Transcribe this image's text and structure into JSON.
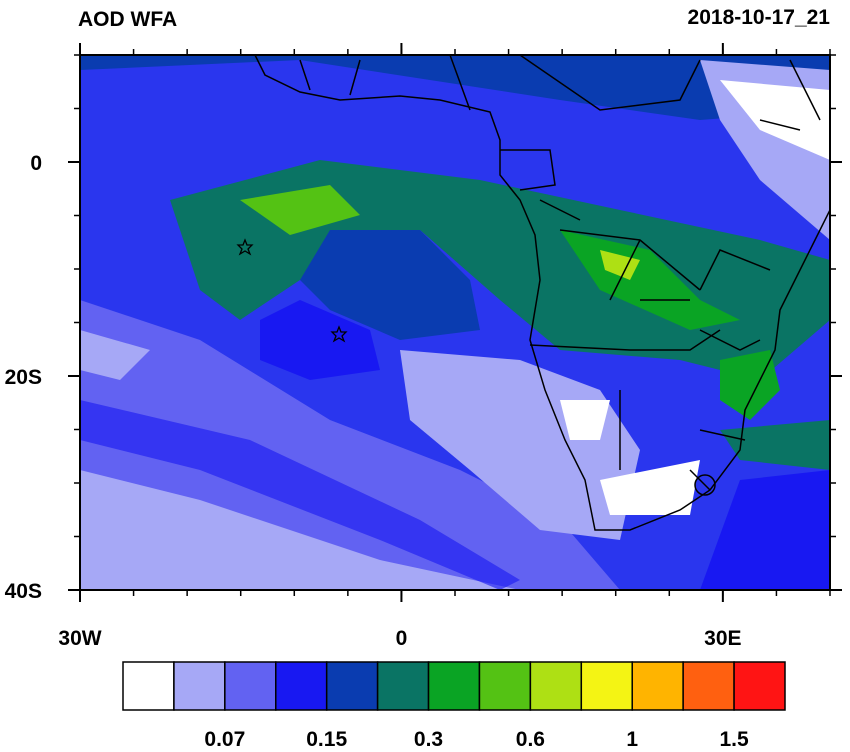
{
  "map": {
    "title": "AOD WFA",
    "timestamp": "2018-10-17_21",
    "lon_range": [
      -30,
      40
    ],
    "lat_range": [
      -40,
      10
    ],
    "lat_ticks": [
      0,
      {
        "value": -20,
        "label": "20S"
      },
      {
        "value": -40,
        "label": "40S"
      }
    ],
    "lon_ticks": [
      {
        "value": -30,
        "label": "30W"
      },
      0,
      {
        "value": 30,
        "label": "30E"
      }
    ]
  },
  "colorbar": {
    "colors": [
      "#ffffff",
      "#a6a8f6",
      "#6262f2",
      "#1818f2",
      "#0a3cb0",
      "#0a7464",
      "#0aa424",
      "#54c214",
      "#aee014",
      "#f4f414",
      "#ffb400",
      "#ff6010",
      "#ff1414"
    ],
    "labels": [
      0.07,
      0.15,
      0.3,
      0.6,
      1,
      1.5
    ]
  }
}
